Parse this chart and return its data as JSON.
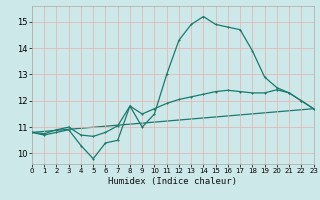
{
  "xlabel": "Humidex (Indice chaleur)",
  "background_color": "#cce8e8",
  "grid_color": "#f0f0f0",
  "line_color": "#1a7a6e",
  "x_min": 0,
  "x_max": 23,
  "y_min": 9.6,
  "y_max": 15.6,
  "yticks": [
    10,
    11,
    12,
    13,
    14,
    15
  ],
  "xticks": [
    0,
    1,
    2,
    3,
    4,
    5,
    6,
    7,
    8,
    9,
    10,
    11,
    12,
    13,
    14,
    15,
    16,
    17,
    18,
    19,
    20,
    21,
    22,
    23
  ],
  "series1_x": [
    0,
    1,
    2,
    3,
    4,
    5,
    6,
    7,
    8,
    9,
    10,
    11,
    12,
    13,
    14,
    15,
    16,
    17,
    18,
    19,
    20,
    21,
    22,
    23
  ],
  "series1_y": [
    10.8,
    10.7,
    10.8,
    10.9,
    10.3,
    9.8,
    10.4,
    10.5,
    11.8,
    11.0,
    11.5,
    13.0,
    14.3,
    14.9,
    15.2,
    14.9,
    14.8,
    14.7,
    13.9,
    12.9,
    12.5,
    12.3,
    12.0,
    11.7
  ],
  "series2_x": [
    0,
    1,
    2,
    3,
    4,
    5,
    6,
    7,
    8,
    9,
    10,
    11,
    12,
    13,
    14,
    15,
    16,
    17,
    18,
    19,
    20,
    21,
    22,
    23
  ],
  "series2_y": [
    10.8,
    10.75,
    10.9,
    11.0,
    10.7,
    10.65,
    10.8,
    11.05,
    11.8,
    11.5,
    11.7,
    11.9,
    12.05,
    12.15,
    12.25,
    12.35,
    12.4,
    12.35,
    12.3,
    12.3,
    12.42,
    12.3,
    12.0,
    11.7
  ],
  "series3_x": [
    0,
    23
  ],
  "series3_y": [
    10.8,
    11.7
  ]
}
